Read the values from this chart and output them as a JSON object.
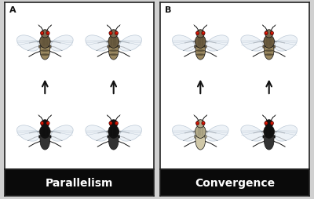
{
  "figure_width": 4.0,
  "figure_height": 2.55,
  "dpi": 100,
  "outer_bg": "#d0d0d0",
  "panel_bg": "#ffffff",
  "panel_border_color": "#222222",
  "label_bar_color": "#0a0a0a",
  "label_text_color": "#ffffff",
  "label_fontsize": 10,
  "panel_label_fontsize": 8,
  "panel_titles": [
    "Parallelism",
    "Convergence"
  ],
  "panel_labels": [
    "A",
    "B"
  ],
  "arrow_color": "#111111",
  "fly_colors": {
    "tan_body": "#8a7455",
    "tan_thorax": "#6b5c40",
    "tan_abdomen": "#9a8860",
    "dark_body": "#1a1a1a",
    "dark_thorax": "#111111",
    "dark_abdomen": "#333333",
    "cream_body": "#c8c0a0",
    "cream_thorax": "#b0a888",
    "cream_abdomen": "#d0c8a8",
    "wing_fill": "#e8eef5",
    "wing_edge": "#aabbcc",
    "wing_vein": "#99aabc",
    "red_eye": "#cc1100",
    "leg_color": "#111111",
    "antenna_color": "#111111",
    "head_tan": "#7a6a50",
    "head_dark": "#111111",
    "head_cream": "#b0a888"
  }
}
